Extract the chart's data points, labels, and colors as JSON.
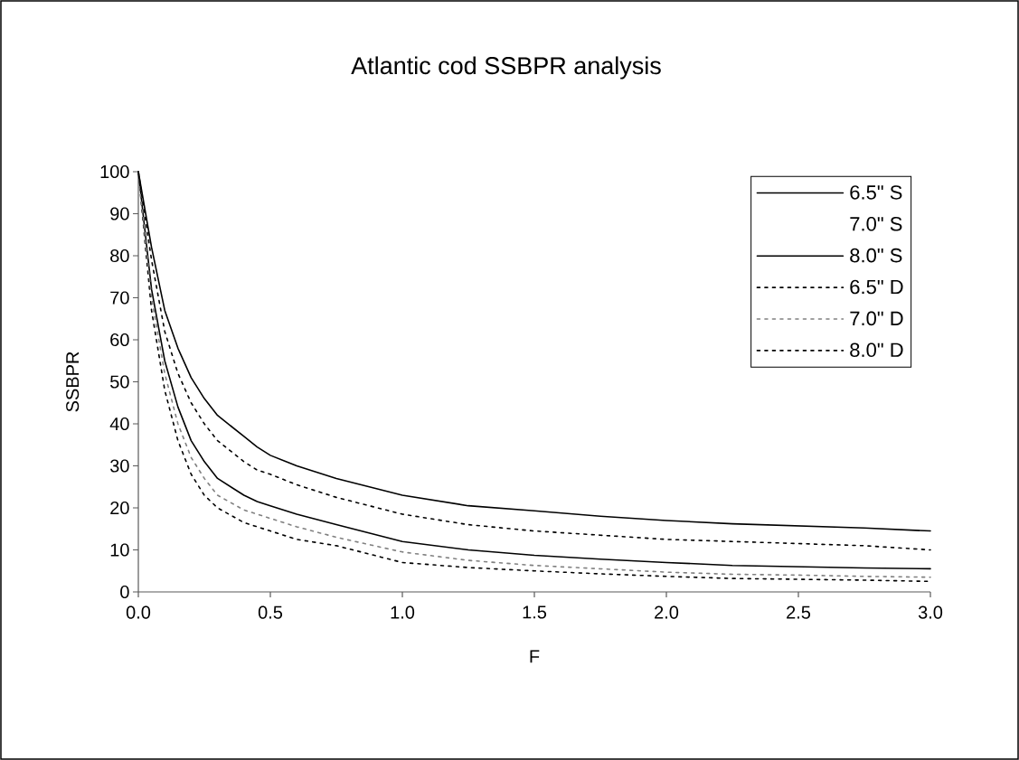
{
  "chart_data": {
    "type": "line",
    "title": "Atlantic cod SSBPR analysis",
    "xlabel": "F",
    "ylabel": "SSBPR",
    "x": [
      0,
      0.05,
      0.1,
      0.15,
      0.2,
      0.25,
      0.3,
      0.4,
      0.45,
      0.5,
      0.6,
      0.75,
      1.0,
      1.25,
      1.5,
      1.75,
      2.0,
      2.25,
      2.5,
      2.75,
      3.0
    ],
    "series": [
      {
        "name": "6.5\" S",
        "color": "#000000",
        "line_style": "solid",
        "values": [
          100,
          72,
          55,
          44,
          36,
          31,
          27,
          23,
          21.5,
          20.5,
          18.5,
          16,
          12,
          10,
          8.7,
          7.8,
          7,
          6.3,
          6,
          5.7,
          5.5
        ]
      },
      {
        "name": "7.0\" S",
        "line_style": "solid",
        "values": [
          null,
          null,
          null,
          null,
          null,
          null,
          null,
          null,
          null,
          null,
          null,
          null,
          null,
          null,
          null,
          null,
          null,
          null,
          null,
          null,
          null
        ]
      },
      {
        "name": "8.0\" S",
        "color": "#000000",
        "line_style": "solid",
        "values": [
          100,
          82,
          67,
          58,
          51,
          46,
          42,
          37,
          34.5,
          32.5,
          30,
          27,
          23,
          20.5,
          19.3,
          18,
          17,
          16.2,
          15.7,
          15.2,
          14.5
        ]
      },
      {
        "name": "6.5\" D",
        "color": "#000000",
        "line_style": "dotted",
        "values": [
          100,
          67,
          48,
          36,
          28,
          23,
          20,
          16.5,
          15.5,
          14.5,
          12.5,
          11,
          7,
          5.8,
          5,
          4.3,
          3.7,
          3.2,
          3,
          2.8,
          2.5
        ]
      },
      {
        "name": "7.0\" D",
        "color": "#808080",
        "line_style": "dotted",
        "values": [
          100,
          70,
          52,
          40,
          32,
          27,
          23,
          19.5,
          18.5,
          17.5,
          15.5,
          13,
          9.5,
          7.5,
          6.3,
          5.5,
          4.7,
          4.2,
          4,
          3.7,
          3.5
        ]
      },
      {
        "name": "8.0\" D",
        "color": "#000000",
        "line_style": "dotted",
        "values": [
          100,
          79,
          62,
          52,
          45,
          40,
          36,
          31,
          29,
          28,
          25.5,
          22.5,
          18.5,
          16,
          14.5,
          13.5,
          12.5,
          12,
          11.5,
          11,
          10
        ]
      }
    ],
    "xlim": [
      0,
      3
    ],
    "ylim": [
      0,
      100
    ],
    "xticks": [
      {
        "value": 0,
        "label": "0.0"
      },
      0.5,
      {
        "value": 1,
        "label": "1.0"
      },
      1.5,
      {
        "value": 2,
        "label": "2.0"
      },
      2.5,
      {
        "value": 3,
        "label": "3.0"
      }
    ],
    "yticks": [
      0,
      10,
      20,
      30,
      40,
      50,
      60,
      70,
      80,
      90,
      100
    ],
    "legend": "top right",
    "marker": "none"
  }
}
